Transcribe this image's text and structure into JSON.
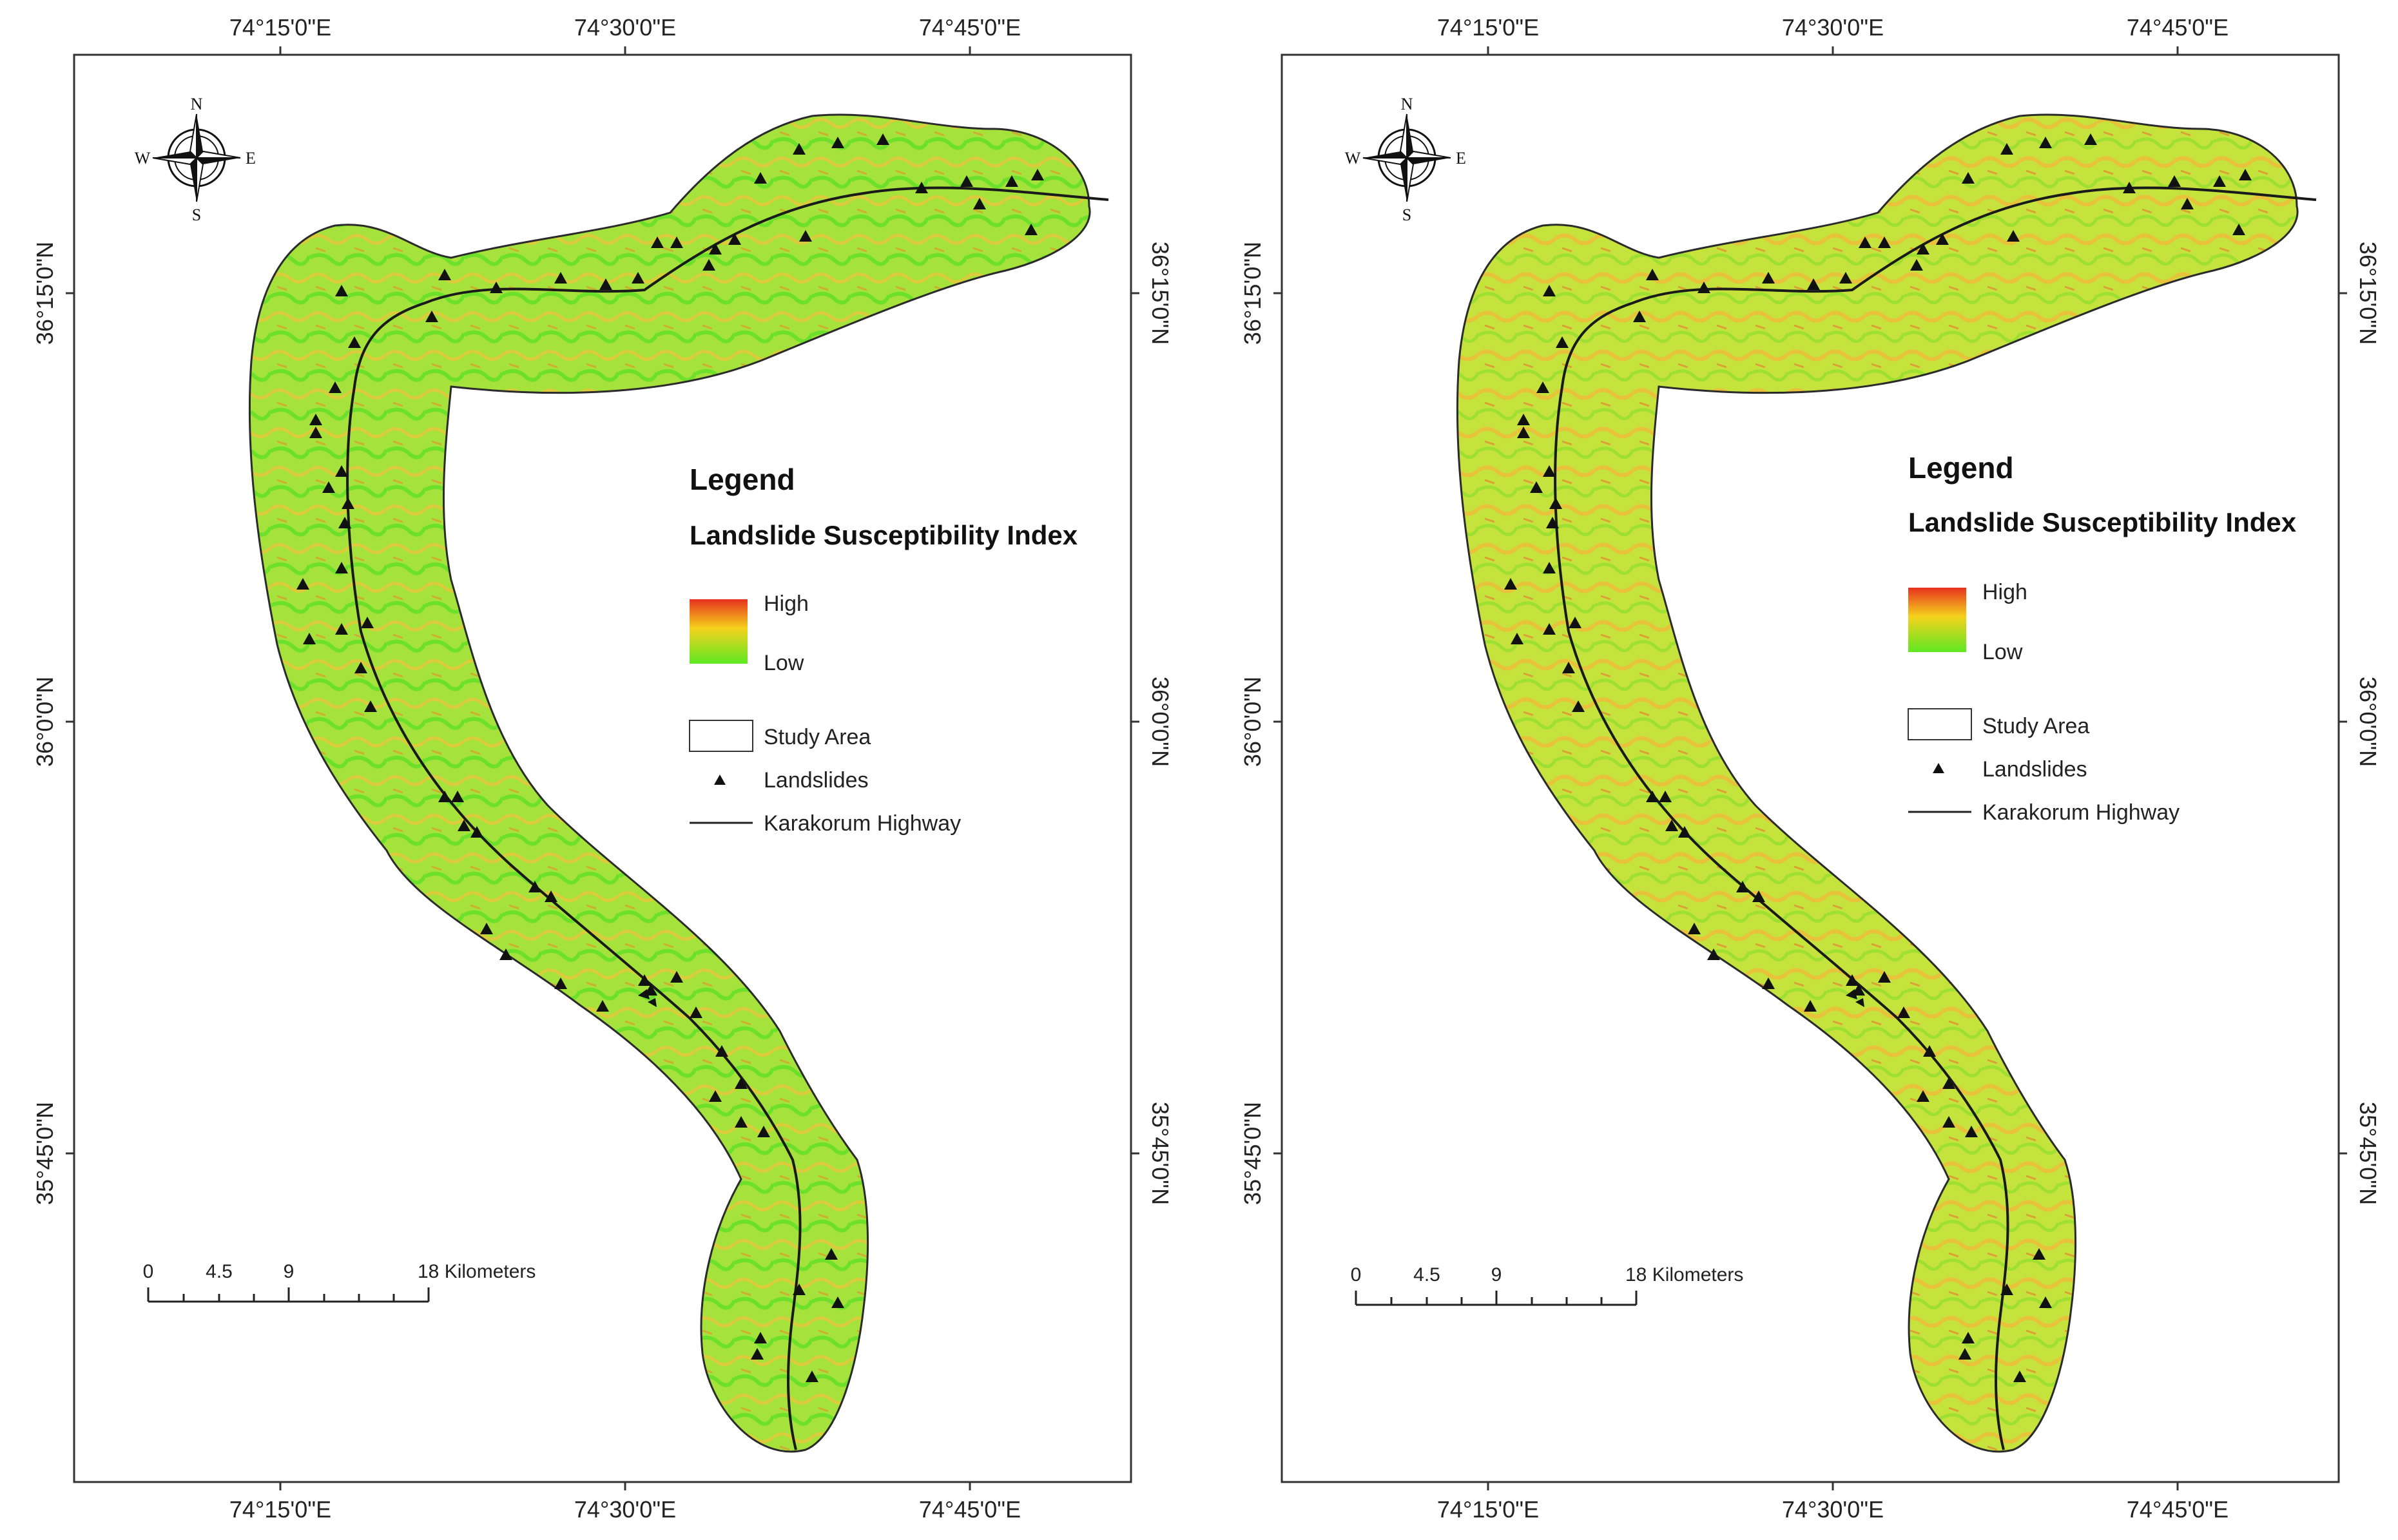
{
  "maps": [
    {
      "top_ticks": [
        "74°15'0\"E",
        "74°30'0\"E",
        "74°45'0\"E"
      ],
      "bottom_ticks": [
        "74°15'0\"E",
        "74°30'0\"E",
        "74°45'0\"E"
      ],
      "left_ticks": [
        "36°15'0\"N",
        "36°0'0\"N",
        "35°45'0\"N"
      ],
      "right_ticks": [
        "36°15'0\"N",
        "36°0'0\"N",
        "35°45'0\"N"
      ],
      "legend": {
        "title": "Legend",
        "subtitle": "Landslide Susceptibility Index",
        "high": "High",
        "low": "Low",
        "study_area": "Study Area",
        "landslides": "Landslides",
        "highway": "Karakorum Highway"
      },
      "scale": {
        "labels": [
          "0",
          "4.5",
          "9",
          "18 Kilometers"
        ]
      },
      "compass": {
        "n": "N",
        "s": "S",
        "e": "E",
        "w": "W"
      }
    },
    {
      "top_ticks": [
        "74°15'0\"E",
        "74°30'0\"E",
        "74°45'0\"E"
      ],
      "bottom_ticks": [
        "74°15'0\"E",
        "74°30'0\"E",
        "74°45'0\"E"
      ],
      "left_ticks": [
        "36°15'0\"N",
        "36°0'0\"N",
        "35°45'0\"N"
      ],
      "right_ticks": [
        "36°15'0\"N",
        "36°0'0\"N",
        "35°45'0\"N"
      ],
      "legend": {
        "title": "Legend",
        "subtitle": "Landslide Susceptibility Index",
        "high": "High",
        "low": "Low",
        "study_area": "Study Area",
        "landslides": "Landslides",
        "highway": "Karakorum Highway"
      },
      "scale": {
        "labels": [
          "0",
          "4.5",
          "9",
          "18 Kilometers"
        ]
      },
      "compass": {
        "n": "N",
        "s": "S",
        "e": "E",
        "w": "W"
      }
    }
  ],
  "colors": {
    "high": "#e8321e",
    "mid": "#f4d21c",
    "low": "#5ee824",
    "study_area_fill": "#9be23a"
  }
}
